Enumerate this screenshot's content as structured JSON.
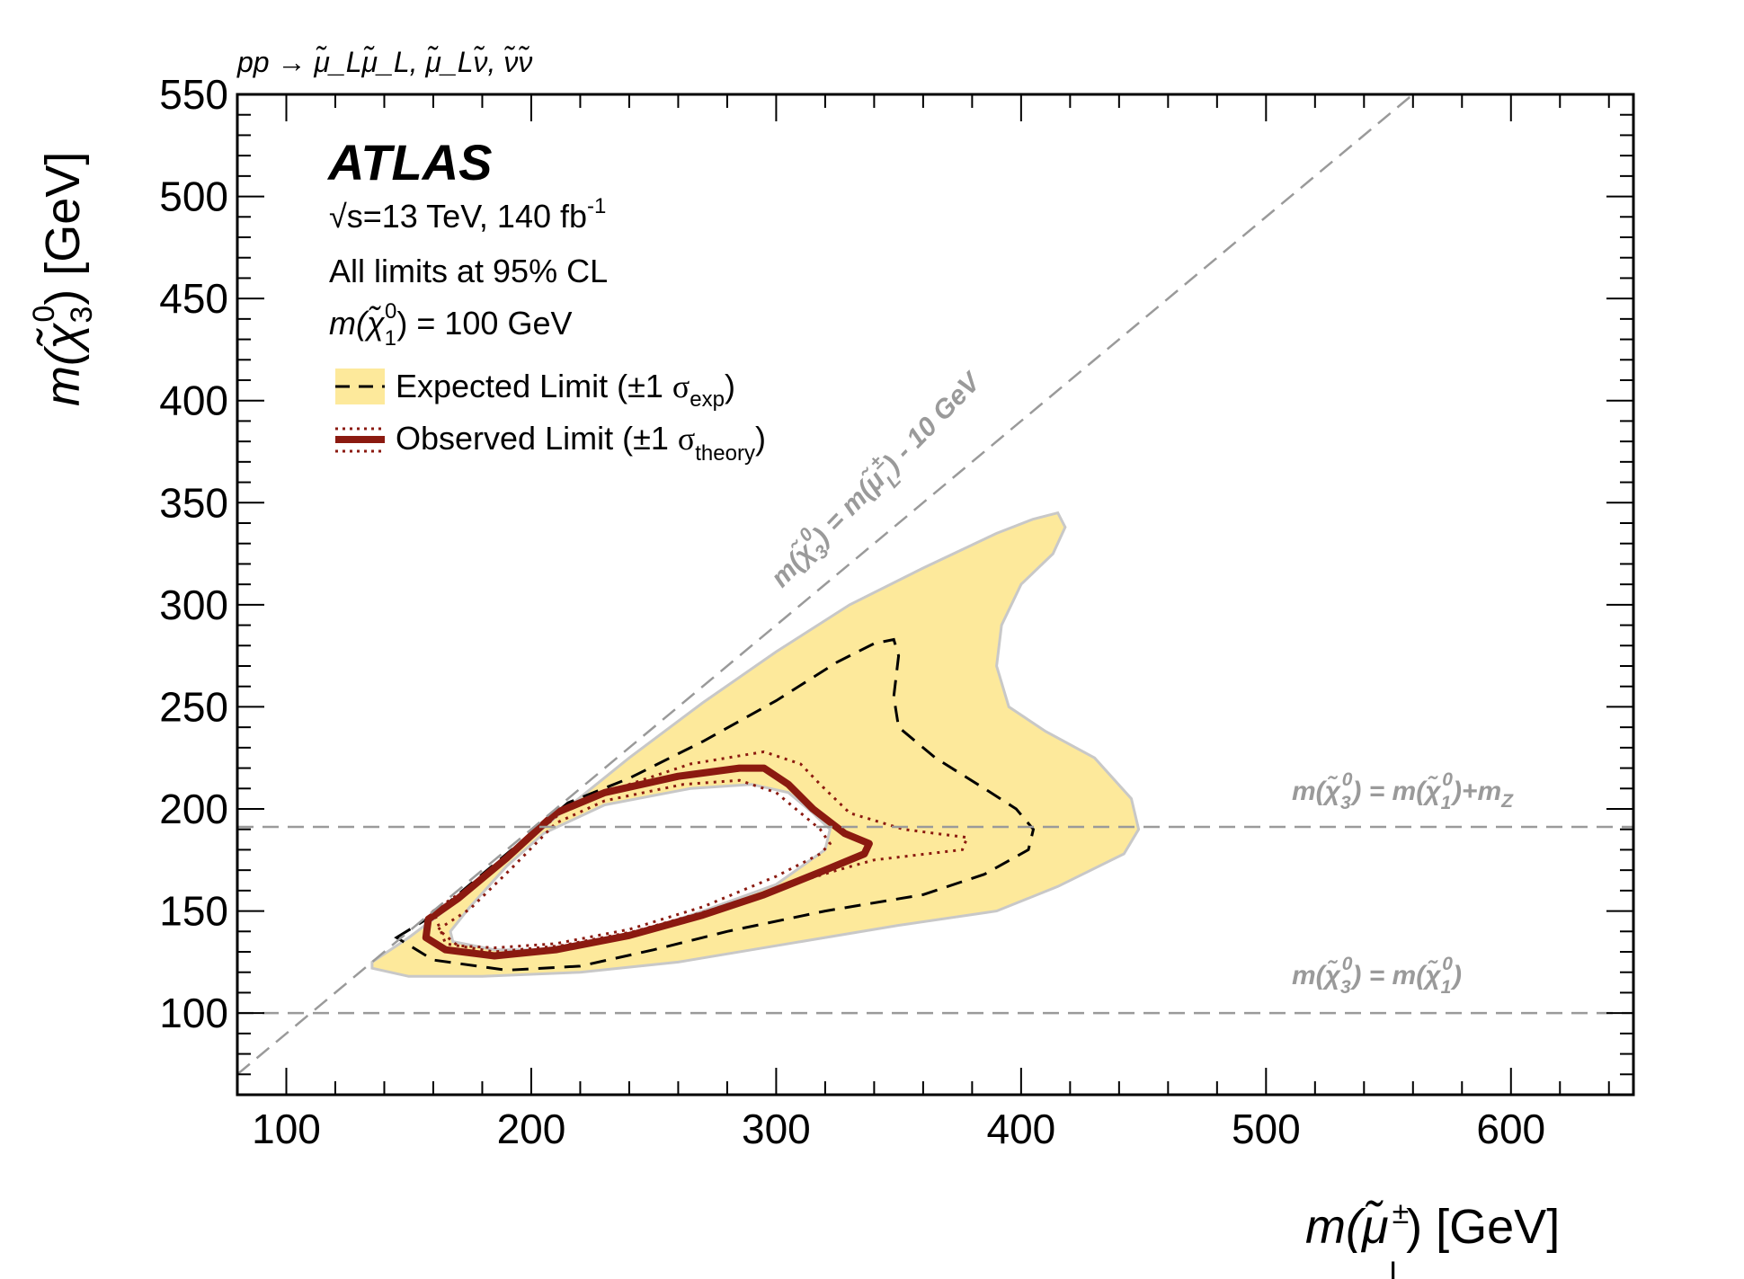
{
  "chart_data": {
    "type": "contour",
    "process_label": "pp → μ̃_Lμ̃_L, μ̃_Lν̃, ν̃ν̃",
    "experiment": "ATLAS",
    "energy_lumi": {
      "sqrt": "√",
      "text": "s=13 TeV, 140 fb",
      "sup": "-1"
    },
    "cl_text": "All limits at 95% CL",
    "neutralino_mass": {
      "pre": "m(χ̃",
      "sup": "0",
      "sub": "1",
      "post": ") = 100 GeV"
    },
    "xlabel": {
      "pre": "m(μ̃",
      "sup": "±",
      "sub": "L",
      "post": ") [GeV]"
    },
    "ylabel": {
      "pre": "m(χ̃",
      "sup": "0",
      "sub": "3",
      "post": ") [GeV]"
    },
    "xlim": [
      80,
      650
    ],
    "ylim": [
      60,
      550
    ],
    "xticks": [
      100,
      200,
      300,
      400,
      500,
      600
    ],
    "yticks": [
      100,
      150,
      200,
      250,
      300,
      350,
      400,
      450,
      500,
      550
    ],
    "x_minor_step": 20,
    "y_minor_step": 10,
    "legend": [
      {
        "name": "Expected Limit (±1 ",
        "sigma": "σ",
        "sub": "exp",
        "close": ")",
        "style": "expected"
      },
      {
        "name": "Observed Limit (±1 ",
        "sigma": "σ",
        "sub": "theory",
        "close": ")",
        "style": "observed"
      }
    ],
    "reference_lines": [
      {
        "type": "diagonal",
        "offset": 10,
        "label": "m(χ̃₃⁰) = m(μ̃L±) - 10 GeV"
      },
      {
        "type": "horizontal",
        "y": 191.2,
        "label": "m(χ̃₃⁰) = m(χ̃₁⁰)+mZ"
      },
      {
        "type": "horizontal",
        "y": 100,
        "label": "m(χ̃₃⁰) = m(χ̃₁⁰)"
      }
    ],
    "colors": {
      "band": "#fde99b",
      "band_edge": "#c8c8c8",
      "observed": "#8b1a10",
      "expected": "#000000",
      "reference": "#9a9a9a"
    },
    "expected_band": [
      [
        135,
        125
      ],
      [
        150,
        137
      ],
      [
        170,
        155
      ],
      [
        190,
        175
      ],
      [
        210,
        196
      ],
      [
        240,
        225
      ],
      [
        270,
        252
      ],
      [
        300,
        277
      ],
      [
        330,
        300
      ],
      [
        360,
        318
      ],
      [
        390,
        335
      ],
      [
        405,
        342
      ],
      [
        415,
        345
      ],
      [
        418,
        338
      ],
      [
        413,
        325
      ],
      [
        400,
        310
      ],
      [
        392,
        290
      ],
      [
        390,
        270
      ],
      [
        395,
        250
      ],
      [
        410,
        238
      ],
      [
        430,
        225
      ],
      [
        445,
        205
      ],
      [
        448,
        190
      ],
      [
        442,
        178
      ],
      [
        415,
        162
      ],
      [
        390,
        150
      ],
      [
        350,
        143
      ],
      [
        300,
        133
      ],
      [
        260,
        125
      ],
      [
        220,
        120
      ],
      [
        180,
        118
      ],
      [
        150,
        118
      ],
      [
        135,
        122
      ],
      [
        135,
        125
      ]
    ],
    "expected_band_hole": [
      [
        167,
        140
      ],
      [
        175,
        152
      ],
      [
        190,
        172
      ],
      [
        205,
        188
      ],
      [
        230,
        202
      ],
      [
        265,
        210
      ],
      [
        290,
        212
      ],
      [
        305,
        208
      ],
      [
        315,
        198
      ],
      [
        322,
        190
      ],
      [
        320,
        180
      ],
      [
        300,
        163
      ],
      [
        270,
        150
      ],
      [
        240,
        138
      ],
      [
        210,
        131
      ],
      [
        185,
        131
      ],
      [
        168,
        135
      ],
      [
        167,
        140
      ]
    ],
    "expected_line": [
      [
        145,
        137
      ],
      [
        160,
        148
      ],
      [
        180,
        168
      ],
      [
        200,
        188
      ],
      [
        215,
        203
      ],
      [
        240,
        215
      ],
      [
        270,
        233
      ],
      [
        300,
        253
      ],
      [
        325,
        272
      ],
      [
        340,
        281
      ],
      [
        348,
        283
      ],
      [
        350,
        275
      ],
      [
        348,
        255
      ],
      [
        350,
        240
      ],
      [
        365,
        225
      ],
      [
        385,
        210
      ],
      [
        398,
        200
      ],
      [
        405,
        190
      ],
      [
        403,
        180
      ],
      [
        385,
        168
      ],
      [
        360,
        158
      ],
      [
        320,
        150
      ],
      [
        280,
        140
      ],
      [
        250,
        131
      ],
      [
        220,
        123
      ],
      [
        190,
        121
      ],
      [
        160,
        126
      ],
      [
        145,
        137
      ]
    ],
    "observed_line": [
      [
        158,
        146
      ],
      [
        170,
        156
      ],
      [
        190,
        176
      ],
      [
        210,
        198
      ],
      [
        230,
        208
      ],
      [
        260,
        216
      ],
      [
        285,
        220
      ],
      [
        295,
        220
      ],
      [
        305,
        212
      ],
      [
        315,
        200
      ],
      [
        328,
        188
      ],
      [
        338,
        183
      ],
      [
        336,
        178
      ],
      [
        320,
        170
      ],
      [
        295,
        158
      ],
      [
        270,
        148
      ],
      [
        240,
        138
      ],
      [
        210,
        131
      ],
      [
        185,
        128
      ],
      [
        165,
        131
      ],
      [
        157,
        137
      ],
      [
        158,
        146
      ]
    ],
    "observed_plus": [
      [
        160,
        150
      ],
      [
        175,
        162
      ],
      [
        195,
        181
      ],
      [
        215,
        201
      ],
      [
        240,
        212
      ],
      [
        265,
        222
      ],
      [
        295,
        228
      ],
      [
        310,
        222
      ],
      [
        318,
        212
      ],
      [
        330,
        198
      ],
      [
        352,
        190
      ],
      [
        378,
        186
      ],
      [
        376,
        180
      ],
      [
        340,
        175
      ],
      [
        325,
        170
      ],
      [
        300,
        161
      ],
      [
        272,
        150
      ],
      [
        242,
        140
      ],
      [
        212,
        133
      ],
      [
        185,
        130
      ],
      [
        165,
        134
      ],
      [
        160,
        150
      ]
    ],
    "observed_minus": [
      [
        162,
        141
      ],
      [
        175,
        151
      ],
      [
        192,
        171
      ],
      [
        210,
        193
      ],
      [
        230,
        204
      ],
      [
        262,
        212
      ],
      [
        285,
        214
      ],
      [
        300,
        208
      ],
      [
        308,
        200
      ],
      [
        318,
        190
      ],
      [
        322,
        183
      ],
      [
        318,
        178
      ],
      [
        300,
        167
      ],
      [
        270,
        152
      ],
      [
        240,
        141
      ],
      [
        210,
        134
      ],
      [
        185,
        132
      ],
      [
        170,
        133
      ],
      [
        162,
        141
      ]
    ]
  }
}
